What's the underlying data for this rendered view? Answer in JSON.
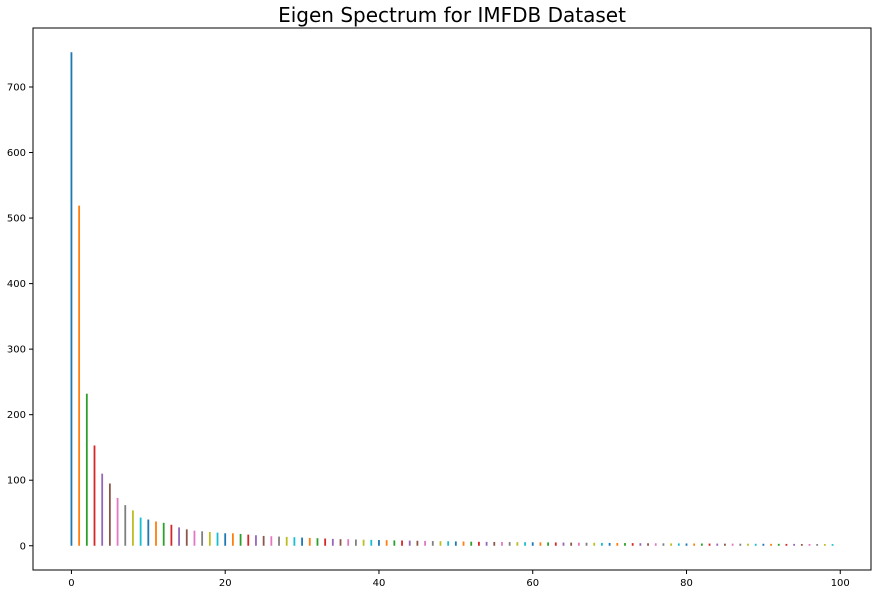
{
  "chart_data": {
    "type": "bar",
    "title": "Eigen Spectrum for IMFDB Dataset",
    "xlabel": "",
    "ylabel": "",
    "xlim": [
      -5,
      104
    ],
    "ylim": [
      -37,
      790
    ],
    "x_ticks": [
      0,
      20,
      40,
      60,
      80,
      100
    ],
    "y_ticks": [
      0,
      100,
      200,
      300,
      400,
      500,
      600,
      700
    ],
    "grid": false,
    "legend": "none",
    "series_colors": [
      "#1f77b4",
      "#ff7f0e",
      "#2ca02c",
      "#d62728",
      "#9467bd",
      "#8c564b",
      "#e377c2",
      "#7f7f7f",
      "#bcbd22",
      "#17becf"
    ],
    "x": [
      0,
      1,
      2,
      3,
      4,
      5,
      6,
      7,
      8,
      9,
      10,
      11,
      12,
      13,
      14,
      15,
      16,
      17,
      18,
      19,
      20,
      21,
      22,
      23,
      24,
      25,
      26,
      27,
      28,
      29,
      30,
      31,
      32,
      33,
      34,
      35,
      36,
      37,
      38,
      39,
      40,
      41,
      42,
      43,
      44,
      45,
      46,
      47,
      48,
      49,
      50,
      51,
      52,
      53,
      54,
      55,
      56,
      57,
      58,
      59,
      60,
      61,
      62,
      63,
      64,
      65,
      66,
      67,
      68,
      69,
      70,
      71,
      72,
      73,
      74,
      75,
      76,
      77,
      78,
      79,
      80,
      81,
      82,
      83,
      84,
      85,
      86,
      87,
      88,
      89,
      90,
      91,
      92,
      93,
      94,
      95,
      96,
      97,
      98,
      99
    ],
    "values": [
      753,
      519,
      232,
      153,
      110,
      95,
      73,
      62,
      54,
      43,
      40,
      37,
      35,
      32,
      28,
      25,
      23,
      22,
      21,
      20,
      19,
      19,
      18,
      17,
      16,
      15,
      14.5,
      14,
      13.5,
      13,
      12.5,
      12,
      11.5,
      11,
      10.5,
      10,
      10,
      9.5,
      9.2,
      9,
      8.7,
      8.5,
      8.2,
      8,
      7.8,
      7.6,
      7.4,
      7.2,
      7,
      6.8,
      6.6,
      6.4,
      6.2,
      6,
      5.9,
      5.8,
      5.7,
      5.6,
      5.5,
      5.4,
      5.3,
      5.2,
      5.1,
      5,
      4.9,
      4.8,
      4.7,
      4.6,
      4.5,
      4.4,
      4.3,
      4.2,
      4.1,
      4,
      3.9,
      3.8,
      3.8,
      3.7,
      3.6,
      3.6,
      3.5,
      3.4,
      3.4,
      3.3,
      3.3,
      3.2,
      3.2,
      3.1,
      3.1,
      3,
      3,
      2.9,
      2.9,
      2.8,
      2.8,
      2.7,
      2.7,
      2.6,
      2.6,
      2.5
    ]
  }
}
